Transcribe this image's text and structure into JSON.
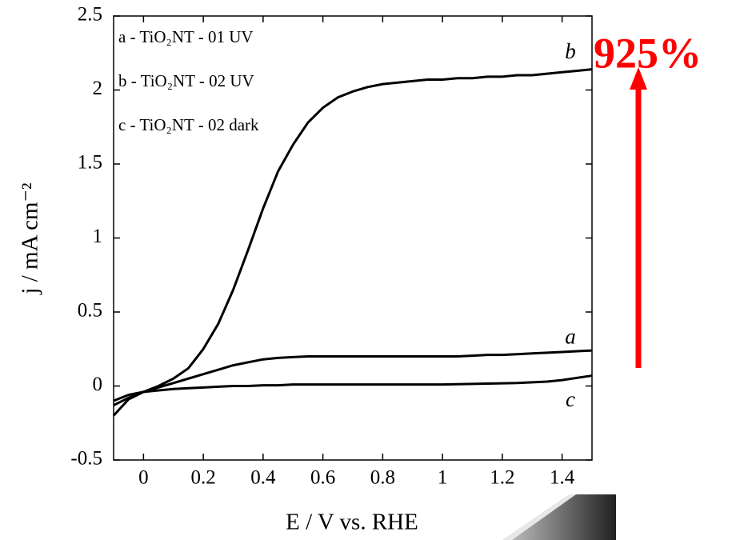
{
  "chart_data": {
    "type": "line",
    "x_label": "E / V vs. RHE",
    "y_label": "j / mA cm⁻²",
    "annotation": "925%",
    "x": [
      -0.1,
      -0.05,
      0,
      0.05,
      0.1,
      0.15,
      0.2,
      0.25,
      0.3,
      0.35,
      0.4,
      0.45,
      0.5,
      0.55,
      0.6,
      0.65,
      0.7,
      0.75,
      0.8,
      0.85,
      0.9,
      0.95,
      1,
      1.05,
      1.1,
      1.15,
      1.2,
      1.25,
      1.3,
      1.35,
      1.4,
      1.45,
      1.5
    ],
    "series": [
      {
        "name": "a - TiO₂NT - 01 UV",
        "label": "a",
        "color": "#000000",
        "values": [
          -0.13,
          -0.08,
          -0.04,
          -0.01,
          0.02,
          0.05,
          0.08,
          0.11,
          0.14,
          0.16,
          0.18,
          0.19,
          0.195,
          0.2,
          0.2,
          0.2,
          0.2,
          0.2,
          0.2,
          0.2,
          0.2,
          0.2,
          0.2,
          0.2,
          0.205,
          0.21,
          0.21,
          0.215,
          0.22,
          0.225,
          0.23,
          0.235,
          0.24
        ]
      },
      {
        "name": "b - TiO₂NT - 02 UV",
        "label": "b",
        "color": "#000000",
        "values": [
          -0.2,
          -0.09,
          -0.04,
          0,
          0.05,
          0.12,
          0.25,
          0.42,
          0.65,
          0.92,
          1.2,
          1.45,
          1.63,
          1.78,
          1.88,
          1.95,
          1.99,
          2.02,
          2.04,
          2.05,
          2.06,
          2.07,
          2.07,
          2.08,
          2.08,
          2.09,
          2.09,
          2.1,
          2.1,
          2.11,
          2.12,
          2.13,
          2.14
        ]
      },
      {
        "name": "c - TiO₂NT - 02 dark",
        "label": "c",
        "color": "#000000",
        "values": [
          -0.1,
          -0.06,
          -0.04,
          -0.03,
          -0.02,
          -0.015,
          -0.01,
          -0.005,
          0,
          0,
          0.005,
          0.005,
          0.01,
          0.01,
          0.01,
          0.01,
          0.01,
          0.01,
          0.01,
          0.01,
          0.01,
          0.01,
          0.01,
          0.012,
          0.014,
          0.016,
          0.018,
          0.02,
          0.025,
          0.03,
          0.04,
          0.055,
          0.07
        ]
      }
    ],
    "xlim": [
      -0.1,
      1.5
    ],
    "xticks": [
      0,
      0.2,
      0.4,
      0.6,
      0.8,
      1,
      1.2,
      1.4
    ],
    "ylim": [
      -0.5,
      2.5
    ],
    "yticks": [
      -0.5,
      0,
      0.5,
      1,
      1.5,
      2,
      2.5
    ],
    "annotation_color": "#ff0000"
  }
}
